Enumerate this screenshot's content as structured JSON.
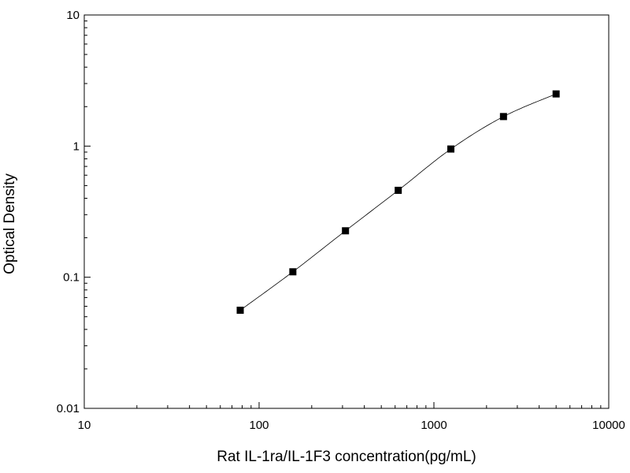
{
  "chart_data": {
    "type": "scatter",
    "title": "",
    "xlabel": "Rat IL-1ra/IL-1F3 concentration(pg/mL)",
    "ylabel": "Optical Density",
    "xscale": "log",
    "yscale": "log",
    "xlim": [
      10,
      10000
    ],
    "ylim": [
      0.01,
      10
    ],
    "xticks": [
      10,
      100,
      1000,
      10000
    ],
    "xtick_labels": [
      "10",
      "100",
      "1000",
      "10000"
    ],
    "yticks": [
      0.01,
      0.1,
      1,
      10
    ],
    "ytick_labels": [
      "0.01",
      "0.1",
      "1",
      "10"
    ],
    "grid": false,
    "fit_curve": true,
    "series": [
      {
        "marker": "square",
        "color": "#000000",
        "x": [
          78,
          156,
          312,
          625,
          1250,
          2500,
          5000
        ],
        "y": [
          0.056,
          0.11,
          0.226,
          0.46,
          0.95,
          1.68,
          2.5
        ]
      }
    ]
  }
}
